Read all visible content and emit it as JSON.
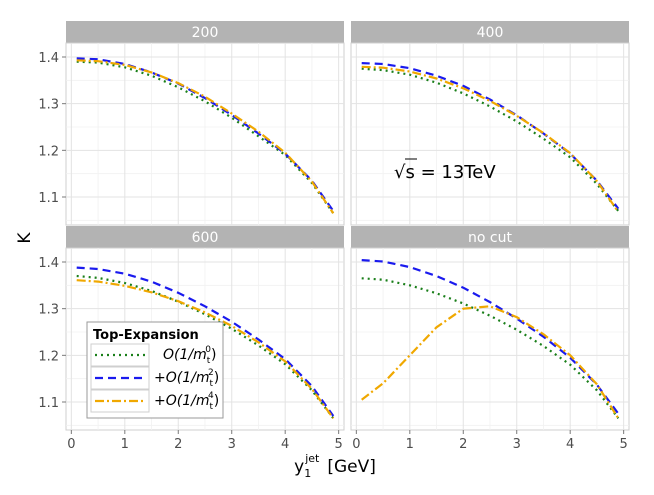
{
  "chart_data": {
    "type": "line",
    "ylabel": "K",
    "xlabel": "y",
    "xlabel_super": "jet",
    "xlabel_sub": "1",
    "xlabel_unit": "[GeV]",
    "xlim": [
      -0.1,
      5.1
    ],
    "ylim": [
      1.04,
      1.43
    ],
    "xticks": [
      "0",
      "1",
      "2",
      "3",
      "4",
      "5"
    ],
    "yticks": [
      "1.1",
      "1.2",
      "1.3",
      "1.4"
    ],
    "annotation": "√s = 13TeV",
    "annotation_parts": {
      "root_symbol": "√",
      "radicand": "s",
      "rest": " = 13TeV"
    },
    "legend": {
      "title": "Top-Expansion",
      "entries": [
        {
          "prefix": "",
          "label": "O(1/m",
          "sub": "t",
          "sup": "0",
          "suffix": ")"
        },
        {
          "prefix": "+",
          "label": "O(1/m",
          "sub": "t",
          "sup": "2",
          "suffix": ")"
        },
        {
          "prefix": "+",
          "label": "O(1/m",
          "sub": "t",
          "sup": "4",
          "suffix": ")"
        }
      ]
    },
    "series_styles": [
      {
        "name": "O(1/mt^0)",
        "color": "#1a7f1a",
        "dash": "2,4"
      },
      {
        "name": "+O(1/mt^2)",
        "color": "#1a1aee",
        "dash": "8,5"
      },
      {
        "name": "+O(1/mt^4)",
        "color": "#f0a800",
        "dash": "9,3,2,3"
      }
    ],
    "panels": [
      {
        "title": "200",
        "x": [
          0.1,
          0.5,
          1.0,
          1.5,
          2.0,
          2.5,
          3.0,
          3.5,
          4.0,
          4.5,
          4.9
        ],
        "series": [
          {
            "name": "O(1/mt^0)",
            "values": [
              1.39,
              1.388,
              1.378,
              1.36,
              1.335,
              1.305,
              1.27,
              1.23,
              1.19,
              1.13,
              1.065
            ]
          },
          {
            "name": "+O(1/mt^2)",
            "values": [
              1.397,
              1.395,
              1.385,
              1.367,
              1.343,
              1.312,
              1.276,
              1.236,
              1.193,
              1.135,
              1.07
            ]
          },
          {
            "name": "+O(1/mt^4)",
            "values": [
              1.393,
              1.391,
              1.383,
              1.367,
              1.344,
              1.315,
              1.279,
              1.24,
              1.195,
              1.133,
              1.065
            ]
          }
        ]
      },
      {
        "title": "400",
        "x": [
          0.1,
          0.5,
          1.0,
          1.5,
          2.0,
          2.5,
          3.0,
          3.5,
          4.0,
          4.5,
          4.9
        ],
        "series": [
          {
            "name": "O(1/mt^0)",
            "values": [
              1.375,
              1.372,
              1.362,
              1.345,
              1.322,
              1.294,
              1.262,
              1.225,
              1.185,
              1.128,
              1.07
            ]
          },
          {
            "name": "+O(1/mt^2)",
            "values": [
              1.387,
              1.385,
              1.376,
              1.36,
              1.338,
              1.309,
              1.275,
              1.236,
              1.193,
              1.135,
              1.075
            ]
          },
          {
            "name": "+O(1/mt^4)",
            "values": [
              1.379,
              1.377,
              1.369,
              1.354,
              1.333,
              1.306,
              1.274,
              1.237,
              1.194,
              1.134,
              1.068
            ]
          }
        ]
      },
      {
        "title": "600",
        "x": [
          0.1,
          0.5,
          1.0,
          1.5,
          2.0,
          2.5,
          3.0,
          3.5,
          4.0,
          4.5,
          4.9
        ],
        "series": [
          {
            "name": "O(1/mt^0)",
            "values": [
              1.37,
              1.366,
              1.355,
              1.338,
              1.315,
              1.288,
              1.257,
              1.221,
              1.181,
              1.125,
              1.065
            ]
          },
          {
            "name": "+O(1/mt^2)",
            "values": [
              1.388,
              1.385,
              1.375,
              1.358,
              1.334,
              1.305,
              1.272,
              1.234,
              1.192,
              1.134,
              1.07
            ]
          },
          {
            "name": "+O(1/mt^4)",
            "values": [
              1.361,
              1.358,
              1.349,
              1.335,
              1.316,
              1.292,
              1.263,
              1.228,
              1.187,
              1.128,
              1.065
            ]
          }
        ]
      },
      {
        "title": "no cut",
        "x": [
          0.1,
          0.5,
          1.0,
          1.5,
          2.0,
          2.5,
          3.0,
          3.5,
          4.0,
          4.5,
          4.9
        ],
        "series": [
          {
            "name": "O(1/mt^0)",
            "values": [
              1.365,
              1.362,
              1.35,
              1.333,
              1.311,
              1.285,
              1.255,
              1.22,
              1.18,
              1.125,
              1.065
            ]
          },
          {
            "name": "+O(1/mt^2)",
            "values": [
              1.404,
              1.401,
              1.389,
              1.37,
              1.345,
              1.314,
              1.279,
              1.24,
              1.195,
              1.137,
              1.075
            ]
          },
          {
            "name": "+O(1/mt^4)",
            "values": [
              1.105,
              1.14,
              1.2,
              1.26,
              1.3,
              1.305,
              1.282,
              1.245,
              1.2,
              1.138,
              1.065
            ]
          }
        ]
      }
    ]
  }
}
